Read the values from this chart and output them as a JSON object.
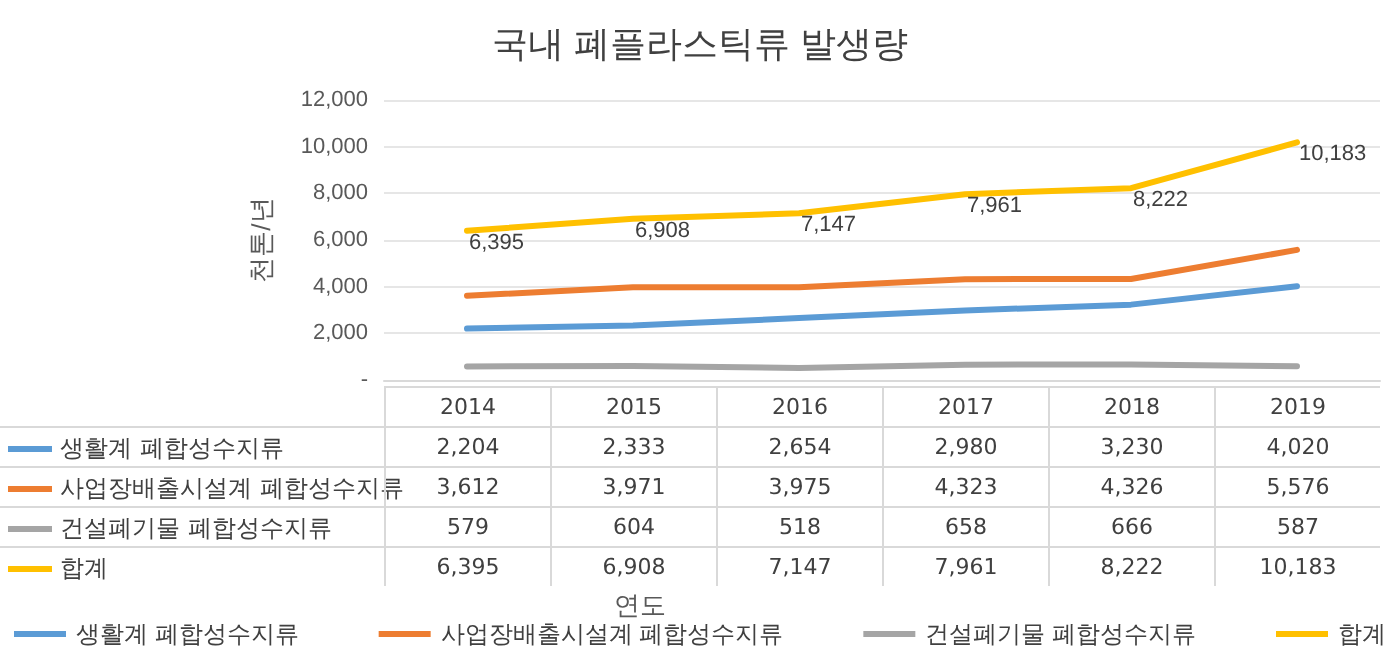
{
  "chart_data": {
    "type": "line",
    "title": "국내 폐플라스틱류 발생량",
    "ylabel": "천톤/년",
    "annotations": [
      "연도"
    ],
    "categories": [
      "2014",
      "2015",
      "2016",
      "2017",
      "2018",
      "2019"
    ],
    "series": [
      {
        "name": "생활계 폐합성수지류",
        "color": "#5b9bd5",
        "values": [
          2204,
          2333,
          2654,
          2980,
          3230,
          4020
        ],
        "value_labels": [
          "2,204",
          "2,333",
          "2,654",
          "2,980",
          "3,230",
          "4,020"
        ]
      },
      {
        "name": "사업장배출시설계 폐합성수지류",
        "color": "#ed7d31",
        "values": [
          3612,
          3971,
          3975,
          4323,
          4326,
          5576
        ],
        "value_labels": [
          "3,612",
          "3,971",
          "3,975",
          "4,323",
          "4,326",
          "5,576"
        ]
      },
      {
        "name": "건설폐기물 폐합성수지류",
        "color": "#a5a5a5",
        "values": [
          579,
          604,
          518,
          658,
          666,
          587
        ],
        "value_labels": [
          "579",
          "604",
          "518",
          "658",
          "666",
          "587"
        ]
      },
      {
        "name": "합계",
        "color": "#ffc000",
        "values": [
          6395,
          6908,
          7147,
          7961,
          8222,
          10183
        ],
        "value_labels": [
          "6,395",
          "6,908",
          "7,147",
          "7,961",
          "8,222",
          "10,183"
        ],
        "data_labels": true
      }
    ],
    "ylim": [
      0,
      12000
    ],
    "yticks": [
      {
        "value": 0,
        "label": "-"
      },
      {
        "value": 2000,
        "label": "2,000"
      },
      {
        "value": 4000,
        "label": "4,000"
      },
      {
        "value": 6000,
        "label": "6,000"
      },
      {
        "value": 8000,
        "label": "8,000"
      },
      {
        "value": 10000,
        "label": "10,000"
      },
      {
        "value": 12000,
        "label": "12,000"
      }
    ],
    "grid": "y",
    "legend": "bottom",
    "marker": "none",
    "line_style": "solid"
  }
}
